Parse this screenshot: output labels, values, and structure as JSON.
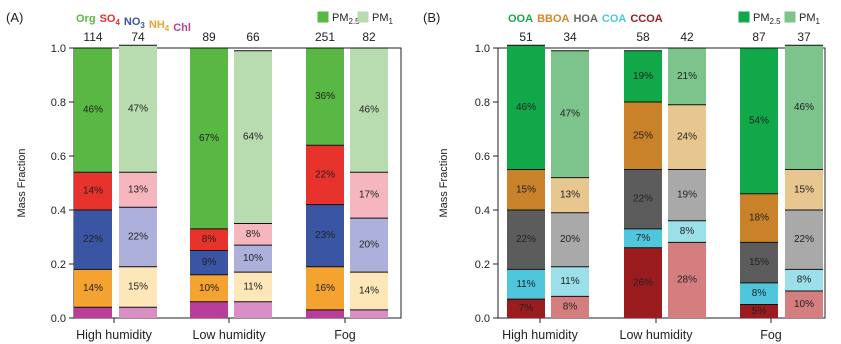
{
  "chart_data": [
    {
      "panel_label": "(A)",
      "type": "bar",
      "stacked": true,
      "ylabel": "Mass Fraction",
      "ylim": [
        0,
        1.0
      ],
      "yticks": [
        "0.0",
        "0.2",
        "0.4",
        "0.6",
        "0.8",
        "1.0"
      ],
      "categories": [
        "High humidity",
        "Low humidity",
        "Fog"
      ],
      "groups": [
        {
          "name": "PM2.5",
          "legend_text": "PM",
          "legend_sub": "2.5",
          "bar_labels": [
            "114",
            "89",
            "251"
          ]
        },
        {
          "name": "PM1",
          "legend_text": "PM",
          "legend_sub": "1",
          "bar_labels": [
            "74",
            "66",
            "82"
          ]
        }
      ],
      "species_legend": [
        {
          "text": "Org",
          "sub": "",
          "color": "#58b843"
        },
        {
          "text": "SO",
          "sub": "4",
          "color": "#e8322c"
        },
        {
          "text": "NO",
          "sub": "3",
          "color": "#3a55a4"
        },
        {
          "text": "NH",
          "sub": "4",
          "color": "#f4a230"
        },
        {
          "text": "Chl",
          "sub": "",
          "color": "#b93e9a"
        }
      ],
      "series": [
        {
          "name": "Chl",
          "colors": [
            "#b93e9a",
            "#d98fc6"
          ],
          "values": [
            [
              0.04,
              0.06,
              0.03
            ],
            [
              0.04,
              0.06,
              0.03
            ]
          ],
          "labels": [
            [
              "",
              "",
              ""
            ],
            [
              "",
              "",
              ""
            ]
          ]
        },
        {
          "name": "NH4",
          "colors": [
            "#f4a230",
            "#fde6b8"
          ],
          "values": [
            [
              0.14,
              0.1,
              0.16
            ],
            [
              0.15,
              0.11,
              0.14
            ]
          ],
          "labels": [
            [
              "14%",
              "10%",
              "16%"
            ],
            [
              "15%",
              "11%",
              "14%"
            ]
          ]
        },
        {
          "name": "NO3",
          "colors": [
            "#3a55a4",
            "#aeb0dc"
          ],
          "values": [
            [
              0.22,
              0.09,
              0.23
            ],
            [
              0.22,
              0.1,
              0.2
            ]
          ],
          "labels": [
            [
              "22%",
              "9%",
              "23%"
            ],
            [
              "22%",
              "10%",
              "20%"
            ]
          ]
        },
        {
          "name": "SO4",
          "colors": [
            "#e8322c",
            "#f5b6be"
          ],
          "values": [
            [
              0.14,
              0.08,
              0.22
            ],
            [
              0.13,
              0.08,
              0.17
            ]
          ],
          "labels": [
            [
              "14%",
              "8%",
              "22%"
            ],
            [
              "13%",
              "8%",
              "17%"
            ]
          ]
        },
        {
          "name": "Org",
          "colors": [
            "#58b843",
            "#b8dcb0"
          ],
          "values": [
            [
              0.46,
              0.67,
              0.36
            ],
            [
              0.47,
              0.64,
              0.46
            ]
          ],
          "labels": [
            [
              "46%",
              "67%",
              "36%"
            ],
            [
              "47%",
              "64%",
              "46%"
            ]
          ]
        }
      ]
    },
    {
      "panel_label": "(B)",
      "type": "bar",
      "stacked": true,
      "ylabel": "Mass Fraction",
      "ylim": [
        0,
        1.0
      ],
      "yticks": [
        "0.0",
        "0.2",
        "0.4",
        "0.6",
        "0.8",
        "1.0"
      ],
      "categories": [
        "High humidity",
        "Low humidity",
        "Fog"
      ],
      "groups": [
        {
          "name": "PM2.5",
          "legend_text": "PM",
          "legend_sub": "2.5",
          "bar_labels": [
            "51",
            "58",
            "87"
          ]
        },
        {
          "name": "PM1",
          "legend_text": "PM",
          "legend_sub": "1",
          "bar_labels": [
            "34",
            "42",
            "37"
          ]
        }
      ],
      "species_legend": [
        {
          "text": "OOA",
          "sub": "",
          "color": "#19a84a"
        },
        {
          "text": "BBOA",
          "sub": "",
          "color": "#d4872a"
        },
        {
          "text": "HOA",
          "sub": "",
          "color": "#666666"
        },
        {
          "text": "COA",
          "sub": "",
          "color": "#4fc6dc"
        },
        {
          "text": "CCOA",
          "sub": "",
          "color": "#9b1c1f"
        }
      ],
      "series": [
        {
          "name": "CCOA",
          "colors": [
            "#9b1c1f",
            "#d47e80"
          ],
          "values": [
            [
              0.07,
              0.26,
              0.05
            ],
            [
              0.08,
              0.28,
              0.1
            ]
          ],
          "labels": [
            [
              "7%",
              "26%",
              "5%"
            ],
            [
              "8%",
              "28%",
              "10%"
            ]
          ]
        },
        {
          "name": "COA",
          "colors": [
            "#4fc6dc",
            "#9bdfe9"
          ],
          "values": [
            [
              0.11,
              0.07,
              0.08
            ],
            [
              0.11,
              0.08,
              0.08
            ]
          ],
          "labels": [
            [
              "11%",
              "7%",
              "8%"
            ],
            [
              "11%",
              "8%",
              "8%"
            ]
          ]
        },
        {
          "name": "HOA",
          "colors": [
            "#5c5c5c",
            "#a9a9a9"
          ],
          "values": [
            [
              0.22,
              0.22,
              0.15
            ],
            [
              0.2,
              0.19,
              0.22
            ]
          ],
          "labels": [
            [
              "22%",
              "22%",
              "15%"
            ],
            [
              "20%",
              "19%",
              "22%"
            ]
          ]
        },
        {
          "name": "BBOA",
          "colors": [
            "#c9822a",
            "#e8c690"
          ],
          "values": [
            [
              0.15,
              0.25,
              0.18
            ],
            [
              0.13,
              0.24,
              0.15
            ]
          ],
          "labels": [
            [
              "15%",
              "25%",
              "18%"
            ],
            [
              "13%",
              "24%",
              "15%"
            ]
          ]
        },
        {
          "name": "OOA",
          "colors": [
            "#11a84a",
            "#7cc38c"
          ],
          "values": [
            [
              0.46,
              0.19,
              0.54
            ],
            [
              0.47,
              0.21,
              0.46
            ]
          ],
          "labels": [
            [
              "46%",
              "19%",
              "54%"
            ],
            [
              "47%",
              "21%",
              "46%"
            ]
          ]
        }
      ]
    }
  ]
}
